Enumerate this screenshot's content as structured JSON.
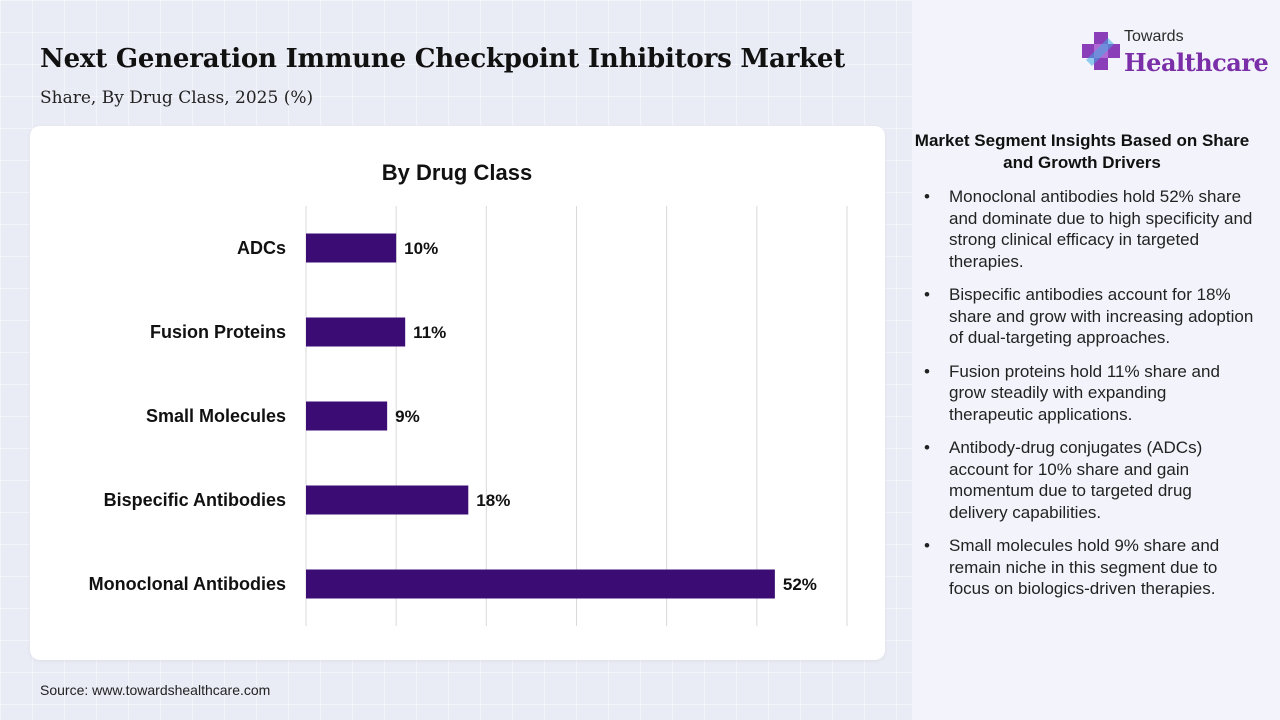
{
  "header": {
    "title": "Next Generation Immune Checkpoint Inhibitors Market",
    "subtitle": "Share, By Drug Class, 2025 (%)"
  },
  "logo": {
    "small_text": "Towards",
    "big_text": "Healthcare",
    "colors": {
      "cross": "#8a3fb8",
      "cross_light": "#3ea7e0",
      "text": "#7a2ea8"
    }
  },
  "chart_data": {
    "type": "bar",
    "orientation": "horizontal",
    "title": "By Drug Class",
    "xlabel": "",
    "ylabel": "",
    "categories": [
      "ADCs",
      "Fusion Proteins",
      "Small Molecules",
      "Bispecific Antibodies",
      "Monoclonal Antibodies"
    ],
    "values": [
      10,
      11,
      9,
      18,
      52
    ],
    "value_labels": [
      "10%",
      "11%",
      "9%",
      "18%",
      "52%"
    ],
    "xlim": [
      0,
      60
    ],
    "grid": true,
    "bar_color": "#3b0c73"
  },
  "insights": {
    "title": "Market Segment Insights Based on Share and Growth Drivers",
    "bullet": "•",
    "items": [
      "Monoclonal antibodies hold 52% share and dominate due to high specificity and strong clinical efficacy in targeted therapies.",
      "Bispecific antibodies account for 18% share and grow with increasing adoption of dual-targeting approaches.",
      "Fusion proteins hold 11% share and grow steadily with expanding therapeutic applications.",
      "Antibody-drug conjugates (ADCs) account for 10% share and gain momentum due to targeted drug delivery capabilities.",
      "Small molecules hold 9% share and remain niche in this segment due to focus on biologics-driven therapies."
    ]
  },
  "footer": {
    "source": "Source: www.towardshealthcare.com"
  }
}
